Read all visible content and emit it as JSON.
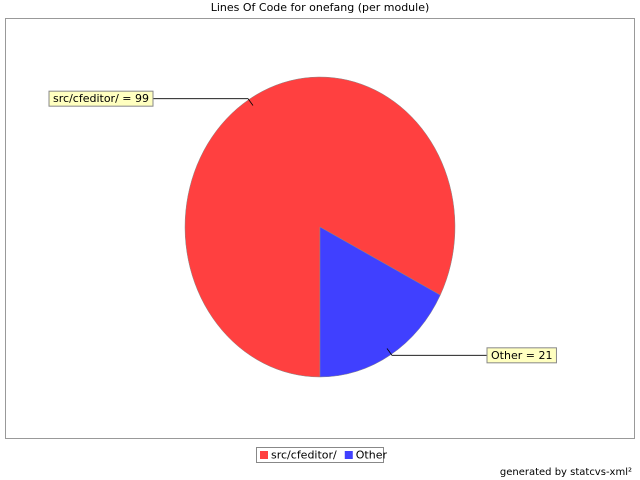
{
  "chart_data": {
    "type": "pie",
    "title": "Lines Of Code for onefang (per module)",
    "categories": [
      "src/cfeditor/",
      "Other"
    ],
    "values": [
      99,
      21
    ],
    "value_labels": [
      "src/cfeditor/ = 99",
      "Other = 21"
    ],
    "colors": [
      "#ff4040",
      "#4040ff"
    ],
    "footer": "generated by statcvs-xml²"
  }
}
